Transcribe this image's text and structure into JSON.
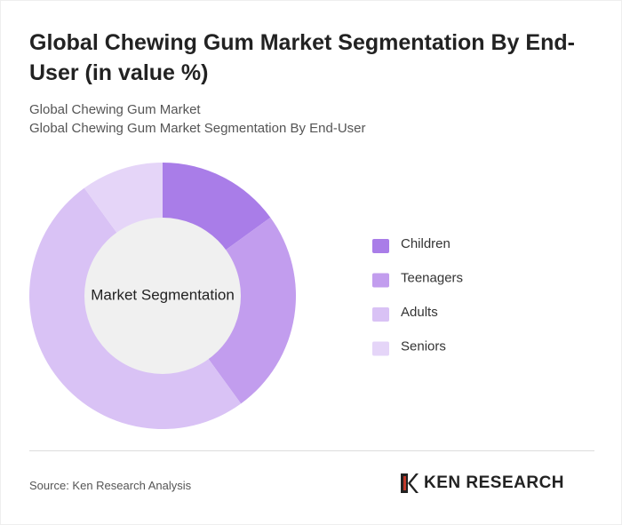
{
  "header": {
    "title": "Global Chewing Gum Market Segmentation By End-User (in value %)",
    "subtitle_lines": [
      "Global Chewing Gum Market",
      "Global Chewing Gum Market Segmentation By End-User"
    ]
  },
  "chart_data": {
    "type": "pie",
    "center_label": "Market Segmentation",
    "categories": [
      "Children",
      "Teenagers",
      "Adults",
      "Seniors"
    ],
    "values": [
      15,
      25,
      50,
      10
    ],
    "colors": [
      "#a97de8",
      "#c29dee",
      "#d9c2f5",
      "#e5d5f8"
    ],
    "legend": "right"
  },
  "footer": {
    "source": "Source: Ken Research Analysis",
    "logo_text": "KEN RESEARCH"
  }
}
